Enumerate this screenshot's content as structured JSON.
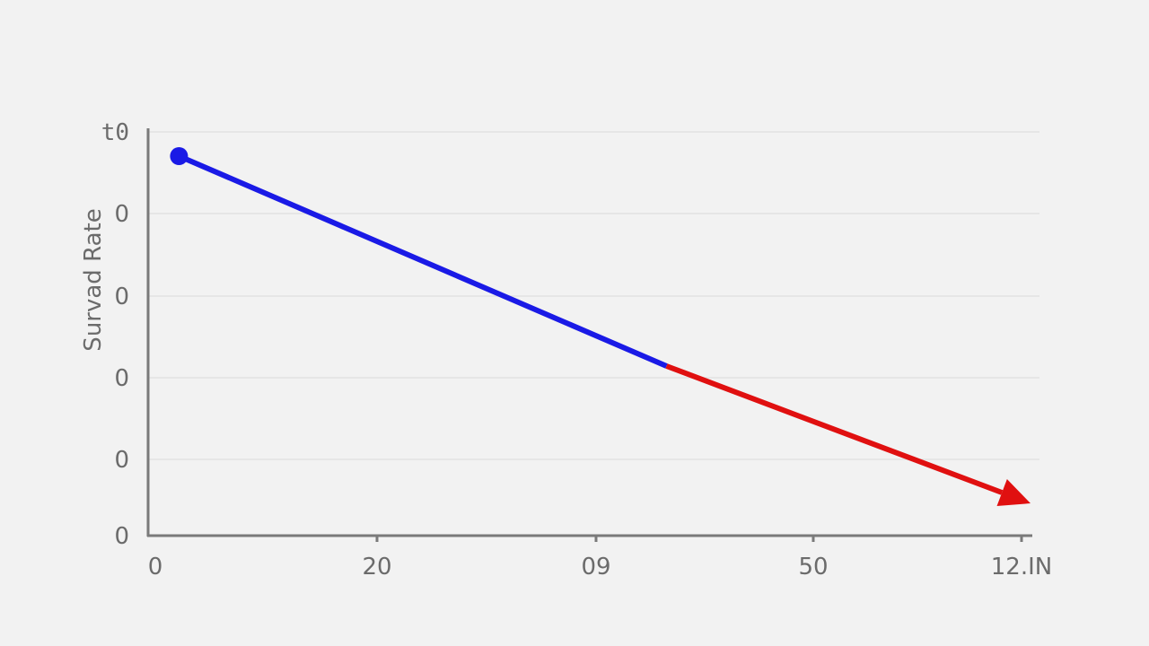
{
  "chart_data": {
    "type": "line",
    "title": "",
    "xlabel": "",
    "ylabel": "Survad Rate",
    "grid": true,
    "x_tick_labels": [
      "0",
      "20",
      "09",
      "50",
      "12.IN"
    ],
    "y_tick_labels": [
      "0",
      "0",
      "0",
      "0",
      "0",
      "t0"
    ],
    "xlim": [
      0,
      4
    ],
    "ylim": [
      0,
      5
    ],
    "segments": [
      {
        "color": "#1a1ae6",
        "points": [
          [
            0.14,
            4.7
          ],
          [
            2.35,
            2.1
          ]
        ],
        "start_marker": "dot"
      },
      {
        "color": "#e01010",
        "points": [
          [
            2.35,
            2.1
          ],
          [
            4.0,
            0.4
          ]
        ],
        "end_marker": "arrow"
      }
    ],
    "colors": {
      "axis": "#7a7a7a",
      "grid": "#e2e2e2",
      "line_start": "#1a1ae6",
      "line_end": "#e01010"
    }
  }
}
